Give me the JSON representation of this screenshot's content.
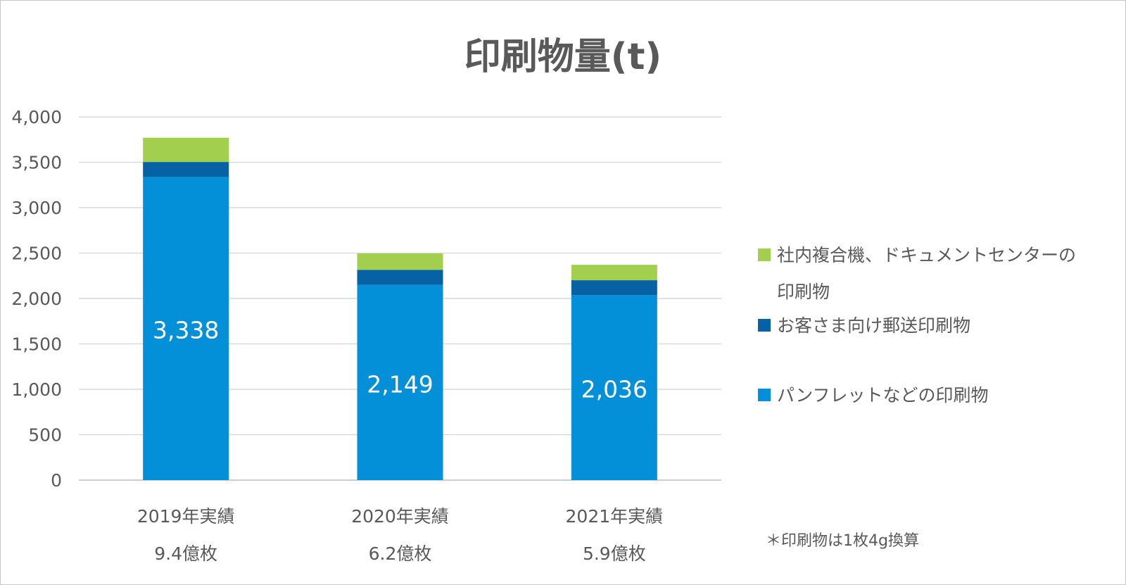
{
  "chart_data": {
    "type": "bar",
    "stacked": true,
    "title": "印刷物量(t)",
    "categories": [
      "2019年実績",
      "2020年実績",
      "2021年実績"
    ],
    "sublabels": [
      "9.4億枚",
      "6.2億枚",
      "5.9億枚"
    ],
    "ylim": [
      0,
      4000
    ],
    "yticks": [
      0,
      500,
      1000,
      1500,
      2000,
      2500,
      3000,
      3500,
      4000
    ],
    "ytick_labels": [
      "0",
      "500",
      "1,000",
      "1,500",
      "2,000",
      "2,500",
      "3,000",
      "3,500",
      "4,000"
    ],
    "grid": true,
    "legend_position": "right",
    "series": [
      {
        "name": "パンフレットなどの印刷物",
        "values": [
          3338,
          2149,
          2036
        ],
        "value_labels": [
          "3,338",
          "2,149",
          "2,036"
        ],
        "color": "#0490d8"
      },
      {
        "name": "お客さま向け郵送印刷物",
        "values": [
          165,
          167,
          165
        ],
        "color": "#0762a5"
      },
      {
        "name_lines": [
          "社内複合機、ドキュメントセンターの",
          "印刷物"
        ],
        "values": [
          267,
          180,
          170
        ],
        "color": "#a3cf4f"
      }
    ],
    "annotation": "＊印刷物は1枚4g換算"
  }
}
